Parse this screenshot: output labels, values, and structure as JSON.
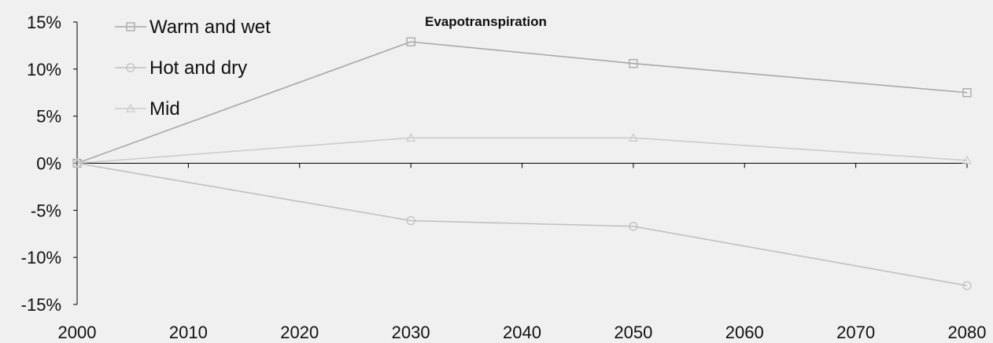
{
  "chart_data": {
    "type": "line",
    "title": "Evapotranspiration",
    "xlabel": "",
    "ylabel": "",
    "x": [
      2000,
      2030,
      2050,
      2080
    ],
    "x_ticks": [
      "2000",
      "2010",
      "2020",
      "2030",
      "2040",
      "2050",
      "2060",
      "2070",
      "2080"
    ],
    "xlim": [
      2000,
      2080
    ],
    "y_ticks": [
      "15%",
      "10%",
      "5%",
      "0%",
      "-5%",
      "-10%",
      "-15%"
    ],
    "ylim": [
      -15,
      15
    ],
    "y_unit": "%",
    "grid": false,
    "legend_position": "top-left",
    "series": [
      {
        "name": "Warm and wet",
        "marker": "square",
        "color": "#a8a8a8",
        "values": [
          0,
          12.9,
          10.6,
          7.5
        ]
      },
      {
        "name": "Hot and dry",
        "marker": "circle",
        "color": "#c0c0c0",
        "values": [
          0,
          -6.1,
          -6.7,
          -13.0
        ]
      },
      {
        "name": "Mid",
        "marker": "triangle",
        "color": "#cccccc",
        "values": [
          0,
          2.7,
          2.7,
          0.3
        ]
      }
    ]
  }
}
